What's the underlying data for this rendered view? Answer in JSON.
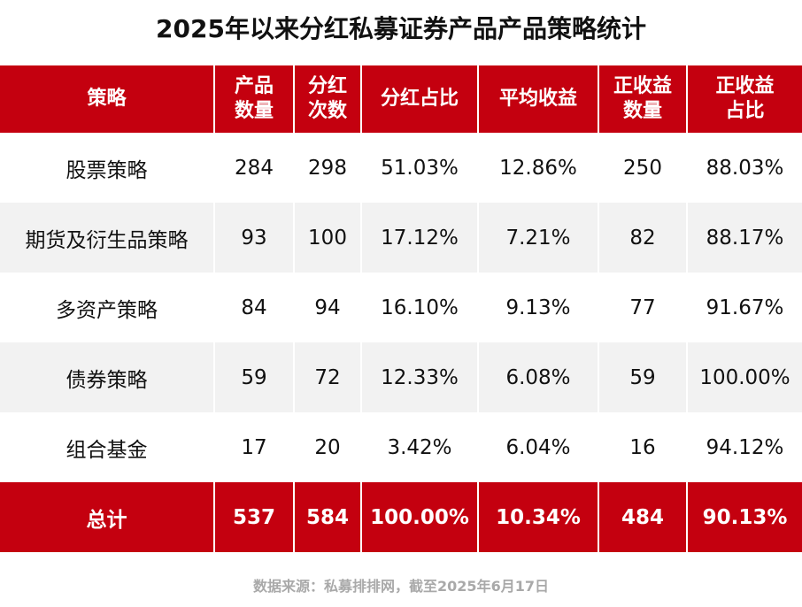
{
  "chart_data": {
    "type": "table",
    "title": "2025年以来分红私募证券产品产品策略统计",
    "columns": [
      {
        "lines": [
          "策略"
        ]
      },
      {
        "lines": [
          "产品",
          "数量"
        ]
      },
      {
        "lines": [
          "分红",
          "次数"
        ]
      },
      {
        "lines": [
          "分红占比"
        ]
      },
      {
        "lines": [
          "平均收益"
        ]
      },
      {
        "lines": [
          "正收益",
          "数量"
        ]
      },
      {
        "lines": [
          "正收益",
          "占比"
        ]
      }
    ],
    "rows": [
      [
        "股票策略",
        "284",
        "298",
        "51.03%",
        "12.86%",
        "250",
        "88.03%"
      ],
      [
        "期货及衍生品策略",
        "93",
        "100",
        "17.12%",
        "7.21%",
        "82",
        "88.17%"
      ],
      [
        "多资产策略",
        "84",
        "94",
        "16.10%",
        "9.13%",
        "77",
        "91.67%"
      ],
      [
        "债券策略",
        "59",
        "72",
        "12.33%",
        "6.08%",
        "59",
        "100.00%"
      ],
      [
        "组合基金",
        "17",
        "20",
        "3.42%",
        "6.04%",
        "16",
        "94.12%"
      ]
    ],
    "total_row": [
      "总计",
      "537",
      "584",
      "100.00%",
      "10.34%",
      "484",
      "90.13%"
    ],
    "source": "数据来源：私募排排网，截至2025年6月17日"
  },
  "colors": {
    "header_bg": "#c4000f",
    "header_text": "#ffffff",
    "alt_row_bg": "#f2f2f2",
    "source_text": "#a9a9a9"
  }
}
